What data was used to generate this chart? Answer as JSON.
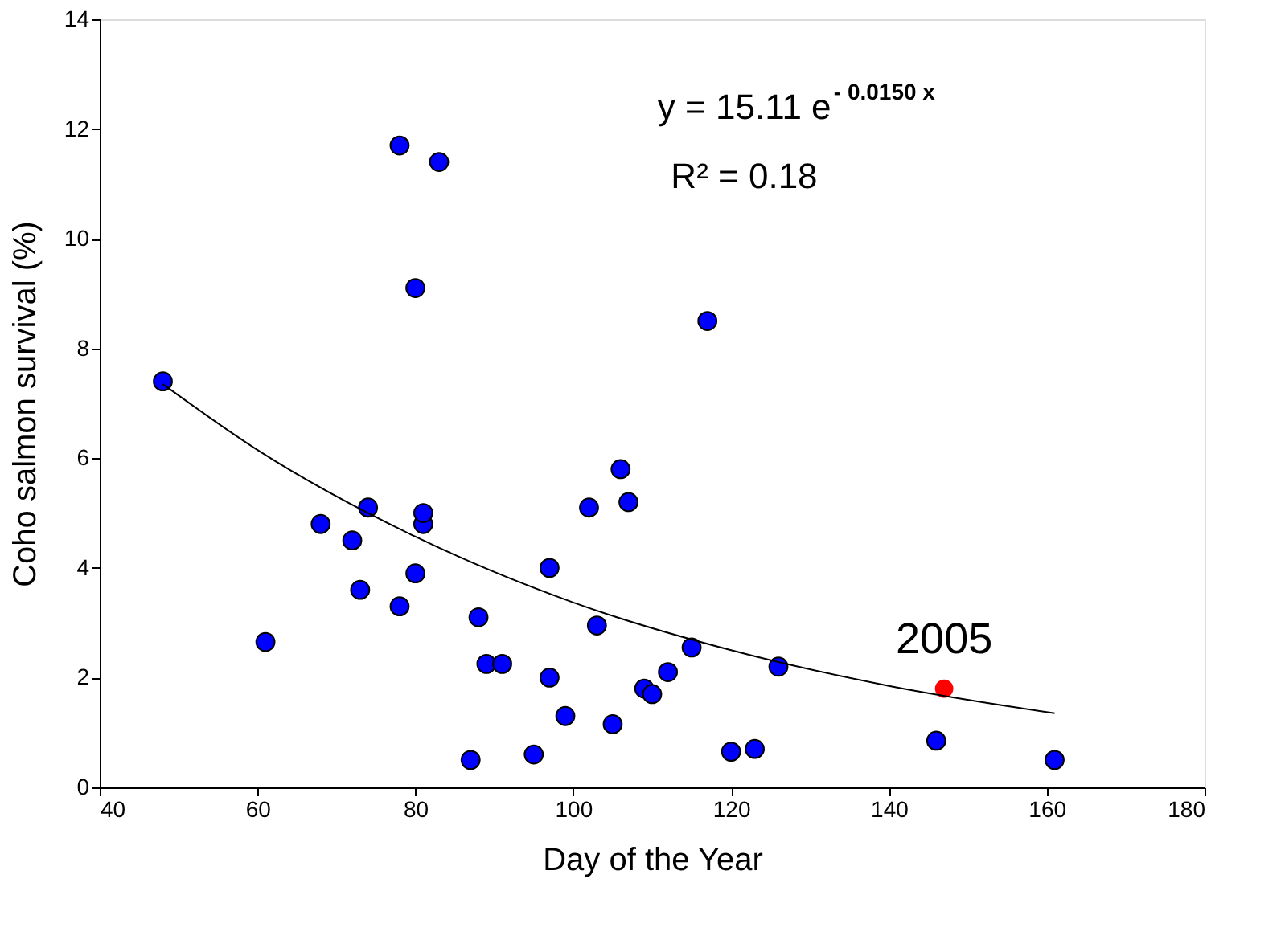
{
  "chart_data": {
    "type": "scatter",
    "xlabel": "Day of the Year",
    "ylabel": "Coho salmon survival (%)",
    "xlim": [
      40,
      180
    ],
    "ylim": [
      0,
      14
    ],
    "xticks": [
      40,
      60,
      80,
      100,
      120,
      140,
      160,
      180
    ],
    "yticks": [
      0,
      2,
      4,
      6,
      8,
      10,
      12,
      14
    ],
    "grid": false,
    "marker": "circle",
    "annotations": [
      "y = 15.11 e$^{- 0.0150 x}$",
      "R² = 0.18",
      {
        "text": "2005",
        "x": 147,
        "y": 1.8
      }
    ],
    "series": [
      {
        "color": "#0000ff",
        "x": [
          48,
          61,
          68,
          72,
          73,
          74,
          78,
          78,
          80,
          80,
          81,
          81,
          83,
          87,
          88,
          89,
          91,
          95,
          97,
          97,
          99,
          102,
          103,
          105,
          106,
          107,
          109,
          110,
          112,
          115,
          117,
          120,
          123,
          126,
          146,
          161
        ],
        "values": [
          7.4,
          2.65,
          4.8,
          4.5,
          3.6,
          5.1,
          11.7,
          3.3,
          9.1,
          3.9,
          4.8,
          5.0,
          11.4,
          0.5,
          3.1,
          2.25,
          2.25,
          0.6,
          4.0,
          2.0,
          1.3,
          5.1,
          2.95,
          1.15,
          5.8,
          5.2,
          1.8,
          1.7,
          2.1,
          2.55,
          8.5,
          0.65,
          0.7,
          2.2,
          0.85,
          0.5
        ]
      },
      {
        "color": "#ff0000",
        "x": [
          147
        ],
        "values": [
          1.8
        ]
      },
      {
        "type": "line",
        "color": "#000000",
        "marker": "none",
        "line_style": "solid",
        "x": [
          48,
          60,
          80,
          100,
          120,
          140,
          161
        ],
        "values": [
          7.35,
          6.15,
          4.57,
          3.37,
          2.5,
          1.85,
          1.35
        ]
      }
    ]
  }
}
